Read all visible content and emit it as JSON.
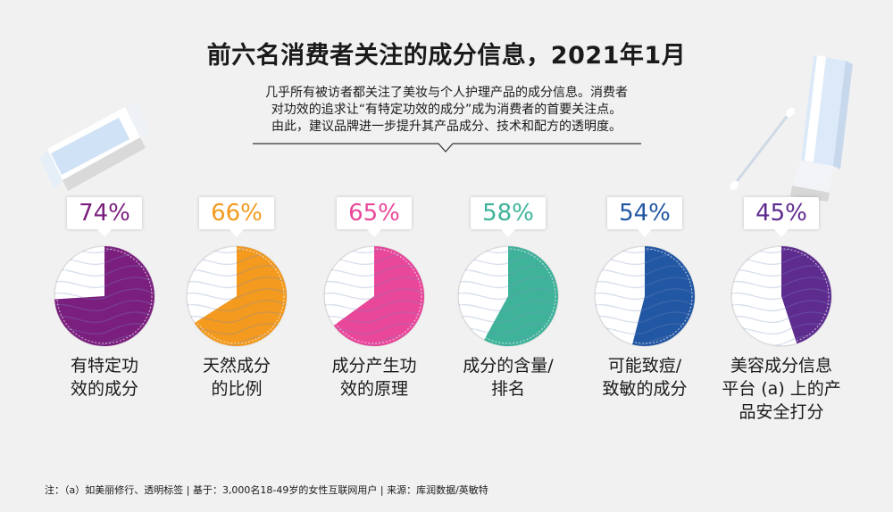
{
  "title": "前六名消费者关注的成分信息，2021年1月",
  "subtitle_lines": [
    "几乎所有被访者都关注了美妆与个人护理产品的成分信息。消费者",
    "对功效的追求让“有特定功效的成分”成为消费者的首要关注点。",
    "由此，建议品牌进一步提升其产品成分、技术和配方的透明度。"
  ],
  "footnote": "注：（a）如美丽修行、透明标签 | 基于：3,000名18-49岁的女性互联网用户 | 来源：库润数据/英敏特",
  "chart_data": {
    "type": "pie",
    "unit": "%",
    "categories": [
      [
        "有特定功",
        "效的成分"
      ],
      [
        "天然成分",
        "的比例"
      ],
      [
        "成分产生功",
        "效的原理"
      ],
      [
        "成分的含量/",
        "排名"
      ],
      [
        "可能致痘/",
        "致敏的成分"
      ],
      [
        "美容成分信息",
        "平台 (a) 上的产",
        "品安全打分"
      ]
    ],
    "values": [
      74,
      66,
      65,
      58,
      54,
      45
    ],
    "value_labels": [
      "74%",
      "66%",
      "65%",
      "58%",
      "54%",
      "45%"
    ],
    "colors": [
      "#7b1f7e",
      "#f39a1f",
      "#e8479a",
      "#3fb39a",
      "#2257a3",
      "#5e2b8f"
    ]
  }
}
